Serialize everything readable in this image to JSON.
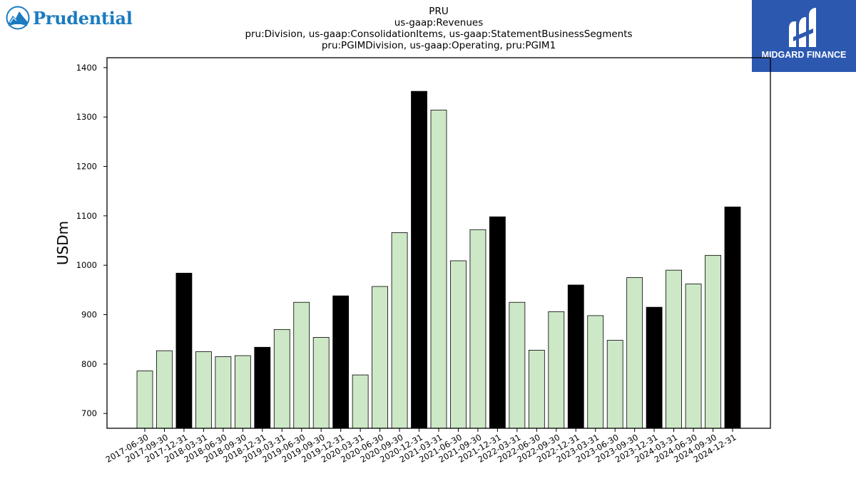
{
  "logos": {
    "left": {
      "text": "Prudential",
      "icon": "prudential-rock-icon",
      "color": "#1b7bc0"
    },
    "right": {
      "text": "MIDGARD FINANCE",
      "icon": "midgard-m-icon",
      "background": "#2c58b0"
    }
  },
  "chart_data": {
    "type": "bar",
    "title": [
      "PRU",
      "us-gaap:Revenues",
      "pru:Division, us-gaap:ConsolidationItems, us-gaap:StatementBusinessSegments",
      "pru:PGIMDivision, us-gaap:Operating, pru:PGIM1"
    ],
    "xlabel": "",
    "ylabel": "USDm",
    "ylim": [
      670,
      1420
    ],
    "yticks": [
      700,
      800,
      900,
      1000,
      1100,
      1200,
      1300,
      1400
    ],
    "grid": false,
    "colors": {
      "quarter": "#cce8c6",
      "year_end": "#000000",
      "edge": "#000000"
    },
    "categories": [
      "2017-06-30",
      "2017-09-30",
      "2017-12-31",
      "2018-03-31",
      "2018-06-30",
      "2018-09-30",
      "2018-12-31",
      "2019-03-31",
      "2019-06-30",
      "2019-09-30",
      "2019-12-31",
      "2020-03-31",
      "2020-06-30",
      "2020-09-30",
      "2020-12-31",
      "2021-03-31",
      "2021-06-30",
      "2021-09-30",
      "2021-12-31",
      "2022-03-31",
      "2022-06-30",
      "2022-09-30",
      "2022-12-31",
      "2023-03-31",
      "2023-06-30",
      "2023-09-30",
      "2023-12-31",
      "2024-03-31",
      "2024-06-30",
      "2024-09-30",
      "2024-12-31"
    ],
    "values": [
      786,
      827,
      984,
      825,
      815,
      817,
      834,
      870,
      925,
      854,
      938,
      778,
      957,
      1066,
      1352,
      1314,
      1009,
      1072,
      1098,
      925,
      828,
      906,
      960,
      898,
      848,
      975,
      915,
      990,
      962,
      1020,
      1118
    ]
  }
}
